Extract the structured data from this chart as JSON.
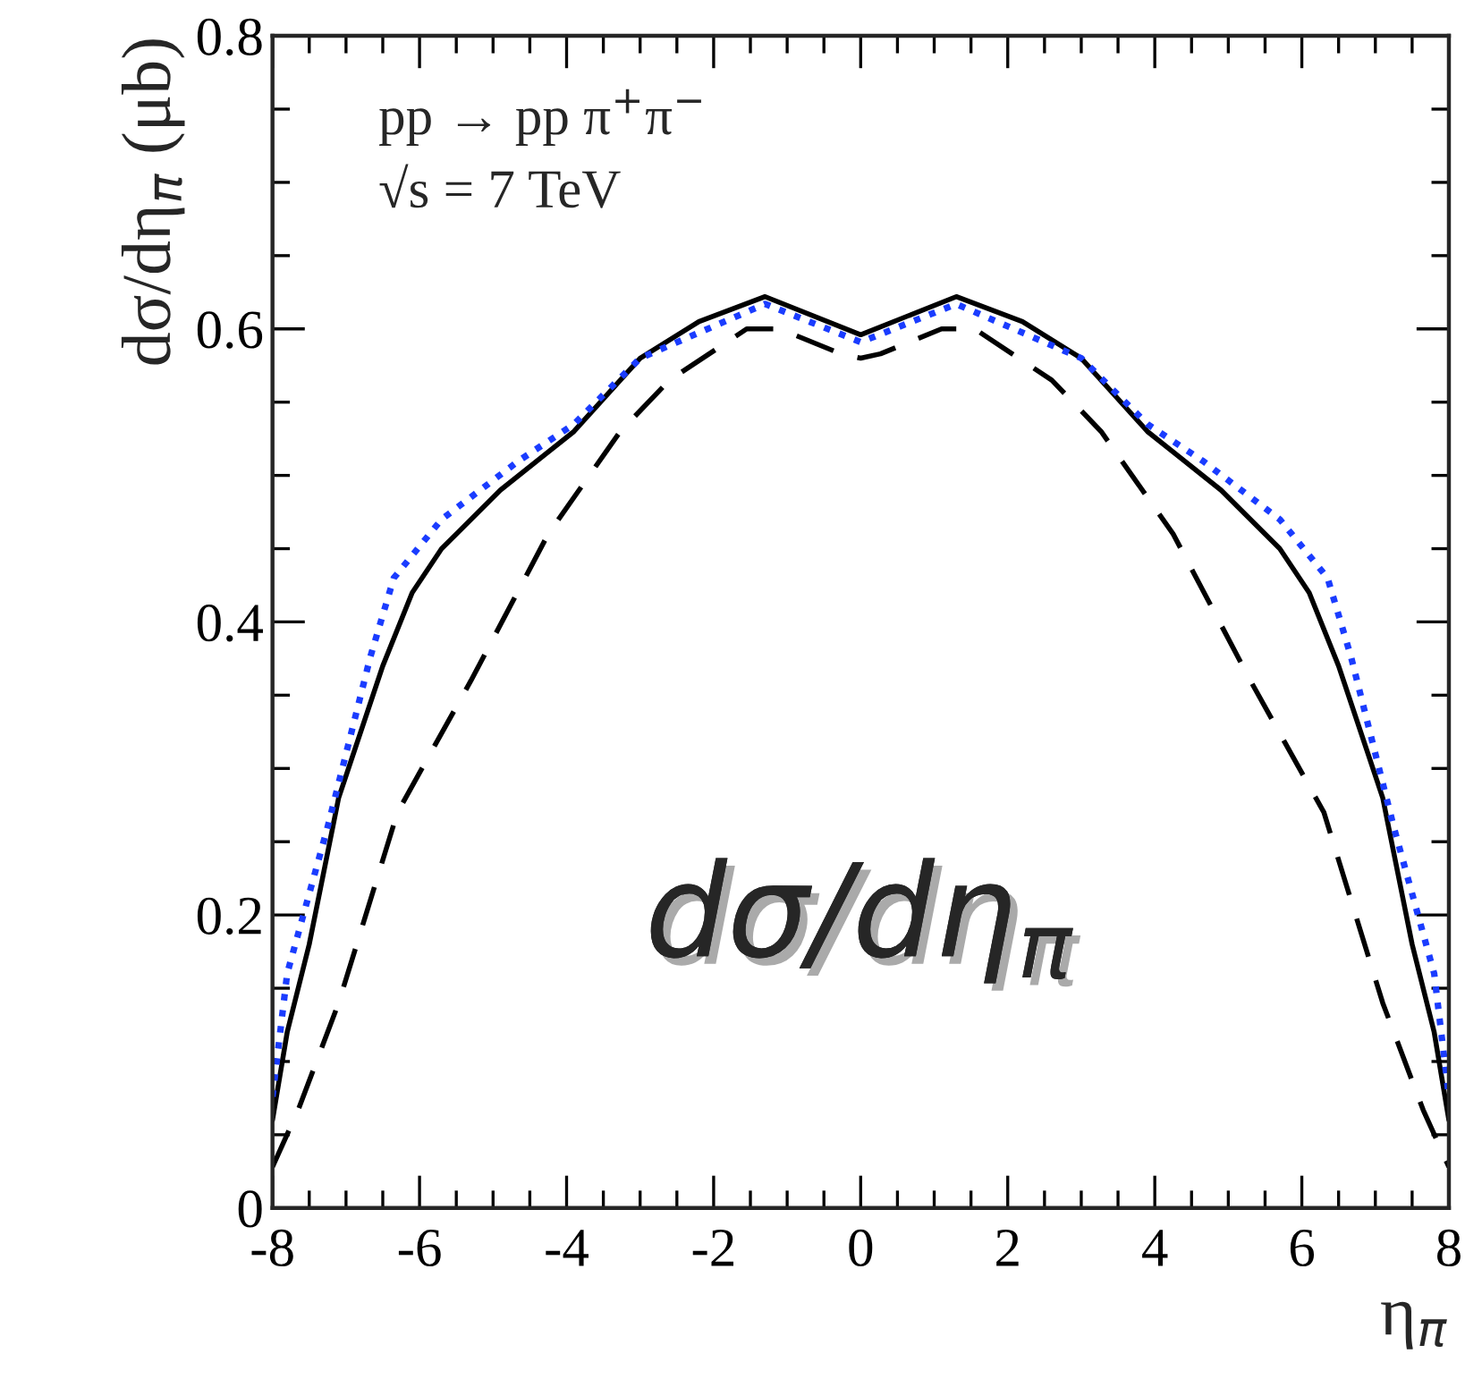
{
  "chart_data": {
    "type": "line",
    "xlabel": "η$_{π}$",
    "ylabel": "dσ/dη$_{π}$ (μb)",
    "annotations": [
      "pp → pp π$^{+}$π$^{−}$",
      "√s = 7 TeV",
      "dσ/dη$_{π}$"
    ],
    "xlim": [
      -8,
      8
    ],
    "ylim": [
      0,
      0.8
    ],
    "xticks": [
      {
        "value": -8,
        "label": "-8"
      },
      {
        "value": -6,
        "label": "-6"
      },
      {
        "value": -4,
        "label": "-4"
      },
      {
        "value": -2,
        "label": "-2"
      },
      0,
      2,
      4,
      6,
      8
    ],
    "yticks": [
      0,
      0.2,
      0.4,
      0.6,
      0.8
    ],
    "grid": false,
    "legend": false,
    "series": [
      {
        "color": "#000000",
        "line_style": "solid",
        "x": [
          -8,
          -7.8,
          -7.5,
          -7.1,
          -6.5,
          -6.1,
          -5.7,
          -4.9,
          -3.9,
          -3.0,
          -2.2,
          -1.3,
          0,
          1.3,
          2.2,
          3.0,
          3.9,
          4.9,
          5.7,
          6.1,
          6.5,
          7.1,
          7.5,
          7.8,
          8
        ],
        "values": [
          0.06,
          0.12,
          0.18,
          0.28,
          0.37,
          0.42,
          0.45,
          0.49,
          0.53,
          0.58,
          0.605,
          0.622,
          0.596,
          0.622,
          0.605,
          0.58,
          0.53,
          0.49,
          0.45,
          0.42,
          0.37,
          0.28,
          0.18,
          0.12,
          0.06
        ]
      },
      {
        "color": "#1a3cff",
        "line_style": "dotted",
        "x": [
          -8,
          -7.8,
          -7.25,
          -6.67,
          -6.35,
          -5.7,
          -4.65,
          -3.9,
          -3.0,
          -1.3,
          0,
          1.3,
          3.0,
          3.9,
          4.65,
          5.7,
          6.35,
          6.67,
          7.25,
          7.8,
          8
        ],
        "values": [
          0.076,
          0.16,
          0.26,
          0.376,
          0.43,
          0.47,
          0.51,
          0.535,
          0.58,
          0.617,
          0.591,
          0.617,
          0.58,
          0.535,
          0.51,
          0.47,
          0.43,
          0.376,
          0.26,
          0.16,
          0.076
        ]
      },
      {
        "color": "#000000",
        "line_style": "dashed",
        "x": [
          -8,
          -7.65,
          -7.1,
          -6.3,
          -5.3,
          -4.25,
          -3.27,
          -2.6,
          -1.55,
          -1.1,
          -0.27,
          0,
          0.27,
          1.1,
          1.55,
          2.6,
          3.27,
          4.25,
          5.3,
          6.3,
          7.1,
          7.65,
          8
        ],
        "values": [
          0.028,
          0.067,
          0.14,
          0.27,
          0.36,
          0.46,
          0.53,
          0.565,
          0.6,
          0.6,
          0.583,
          0.58,
          0.583,
          0.6,
          0.6,
          0.565,
          0.53,
          0.46,
          0.36,
          0.27,
          0.14,
          0.067,
          0.028
        ]
      }
    ]
  }
}
